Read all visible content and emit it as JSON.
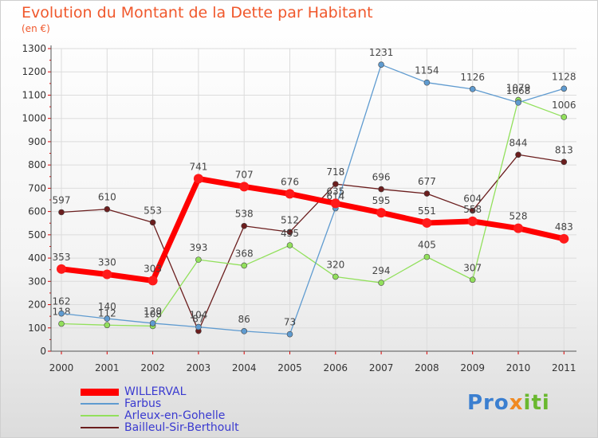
{
  "title": "Evolution du Montant de la Dette par Habitant",
  "subtitle": "(en €)",
  "logo": {
    "text": "Proxiti",
    "parts": [
      "Pro",
      "x",
      "iti"
    ]
  },
  "chart_data": {
    "type": "line",
    "title": "Evolution du Montant de la Dette par Habitant",
    "subtitle": "(en €)",
    "x": [
      "2000",
      "2001",
      "2002",
      "2003",
      "2004",
      "2005",
      "2006",
      "2007",
      "2008",
      "2009",
      "2010",
      "2011"
    ],
    "ylim": [
      0,
      1300
    ],
    "yticks": [
      0,
      100,
      200,
      300,
      400,
      500,
      600,
      700,
      800,
      900,
      1000,
      1100,
      1200,
      1300
    ],
    "grid": true,
    "legend_position": "bottom-left",
    "series": [
      {
        "name": "Bailleul-Sir-Berthoult",
        "color": "#6b1e1e",
        "width": 1.3,
        "values": [
          597,
          610,
          553,
          87,
          538,
          512,
          718,
          696,
          677,
          604,
          844,
          813
        ],
        "labels": [
          "597",
          "610",
          "553",
          "87",
          "538",
          "512",
          "718",
          "696",
          "677",
          "604",
          "844",
          "813"
        ]
      },
      {
        "name": "Arleux-en-Gohelle",
        "color": "#92e05c",
        "width": 1.3,
        "values": [
          118,
          112,
          108,
          393,
          368,
          455,
          320,
          294,
          405,
          307,
          1079,
          1006
        ],
        "labels": [
          "118",
          "112",
          "108",
          "393",
          "368",
          "455",
          "320",
          "294",
          "405",
          "307",
          "1079",
          "1006"
        ]
      },
      {
        "name": "Farbus",
        "color": "#5f9bd0",
        "width": 1.3,
        "values": [
          162,
          140,
          120,
          104,
          86,
          73,
          614,
          1231,
          1154,
          1126,
          1068,
          1128
        ],
        "labels": [
          "162",
          "140",
          "120",
          "104",
          "86",
          "73",
          "614",
          "1231",
          "1154",
          "1126",
          "1068",
          "1128"
        ]
      },
      {
        "name": "WILLERVAL",
        "color": "#ff0000",
        "width": 7,
        "values": [
          353,
          330,
          303,
          741,
          707,
          676,
          635,
          595,
          551,
          558,
          528,
          483
        ],
        "labels": [
          "353",
          "330",
          "303",
          "741",
          "707",
          "676",
          "635",
          "595",
          "551",
          "558",
          "528",
          "483"
        ]
      }
    ],
    "legend": [
      "WILLERVAL",
      "Farbus",
      "Arleux-en-Gohelle",
      "Bailleul-Sir-Berthoult"
    ]
  }
}
